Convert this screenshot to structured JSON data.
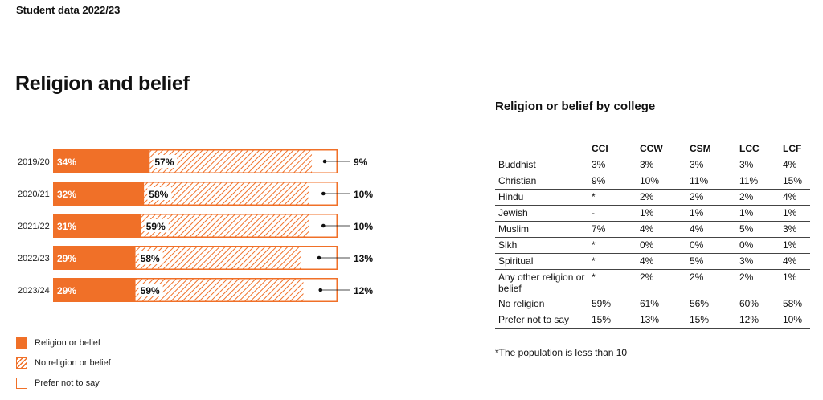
{
  "header": {
    "top_label": "Student data 2022/23",
    "title": "Religion and belief"
  },
  "chart_data": {
    "type": "bar",
    "orientation": "horizontal",
    "stacked": true,
    "categories": [
      "2019/20",
      "2020/21",
      "2021/22",
      "2022/23",
      "2023/24"
    ],
    "series": [
      {
        "name": "Religion or belief",
        "values": [
          34,
          32,
          31,
          29,
          29
        ],
        "labels": [
          "34%",
          "32%",
          "31%",
          "29%",
          "29%"
        ],
        "color": "#f07028"
      },
      {
        "name": "No religion or belief",
        "values": [
          57,
          58,
          59,
          58,
          59
        ],
        "labels": [
          "57%",
          "58%",
          "59%",
          "58%",
          "59%"
        ],
        "color": "#f07028"
      },
      {
        "name": "Prefer not to say",
        "values": [
          9,
          10,
          10,
          13,
          12
        ],
        "labels": [
          "9%",
          "10%",
          "10%",
          "13%",
          "12%"
        ],
        "color": "#ffffff"
      }
    ],
    "xlim": [
      0,
      100
    ],
    "legend": "bottom-left"
  },
  "table": {
    "title": "Religion or belief by college",
    "columns": [
      "",
      "CCI",
      "CCW",
      "CSM",
      "LCC",
      "LCF"
    ],
    "rows": [
      {
        "label": "Buddhist",
        "values": [
          "3%",
          "3%",
          "3%",
          "3%",
          "4%"
        ]
      },
      {
        "label": "Christian",
        "values": [
          "9%",
          "10%",
          "11%",
          "11%",
          "15%"
        ]
      },
      {
        "label": "Hindu",
        "values": [
          "*",
          "2%",
          "2%",
          "2%",
          "4%"
        ]
      },
      {
        "label": "Jewish",
        "values": [
          "-",
          "1%",
          "1%",
          "1%",
          "1%"
        ]
      },
      {
        "label": "Muslim",
        "values": [
          "7%",
          "4%",
          "4%",
          "5%",
          "3%"
        ]
      },
      {
        "label": "Sikh",
        "values": [
          "*",
          "0%",
          "0%",
          "0%",
          "1%"
        ]
      },
      {
        "label": "Spiritual",
        "values": [
          "*",
          "4%",
          "5%",
          "3%",
          "4%"
        ]
      },
      {
        "label": "Any other religion or belief",
        "values": [
          "*",
          "2%",
          "2%",
          "2%",
          "1%"
        ]
      },
      {
        "label": "No religion",
        "values": [
          "59%",
          "61%",
          "56%",
          "60%",
          "58%"
        ]
      },
      {
        "label": "Prefer not to say",
        "values": [
          "15%",
          "13%",
          "15%",
          "12%",
          "10%"
        ]
      }
    ],
    "footnote": "*The population is less than 10"
  }
}
